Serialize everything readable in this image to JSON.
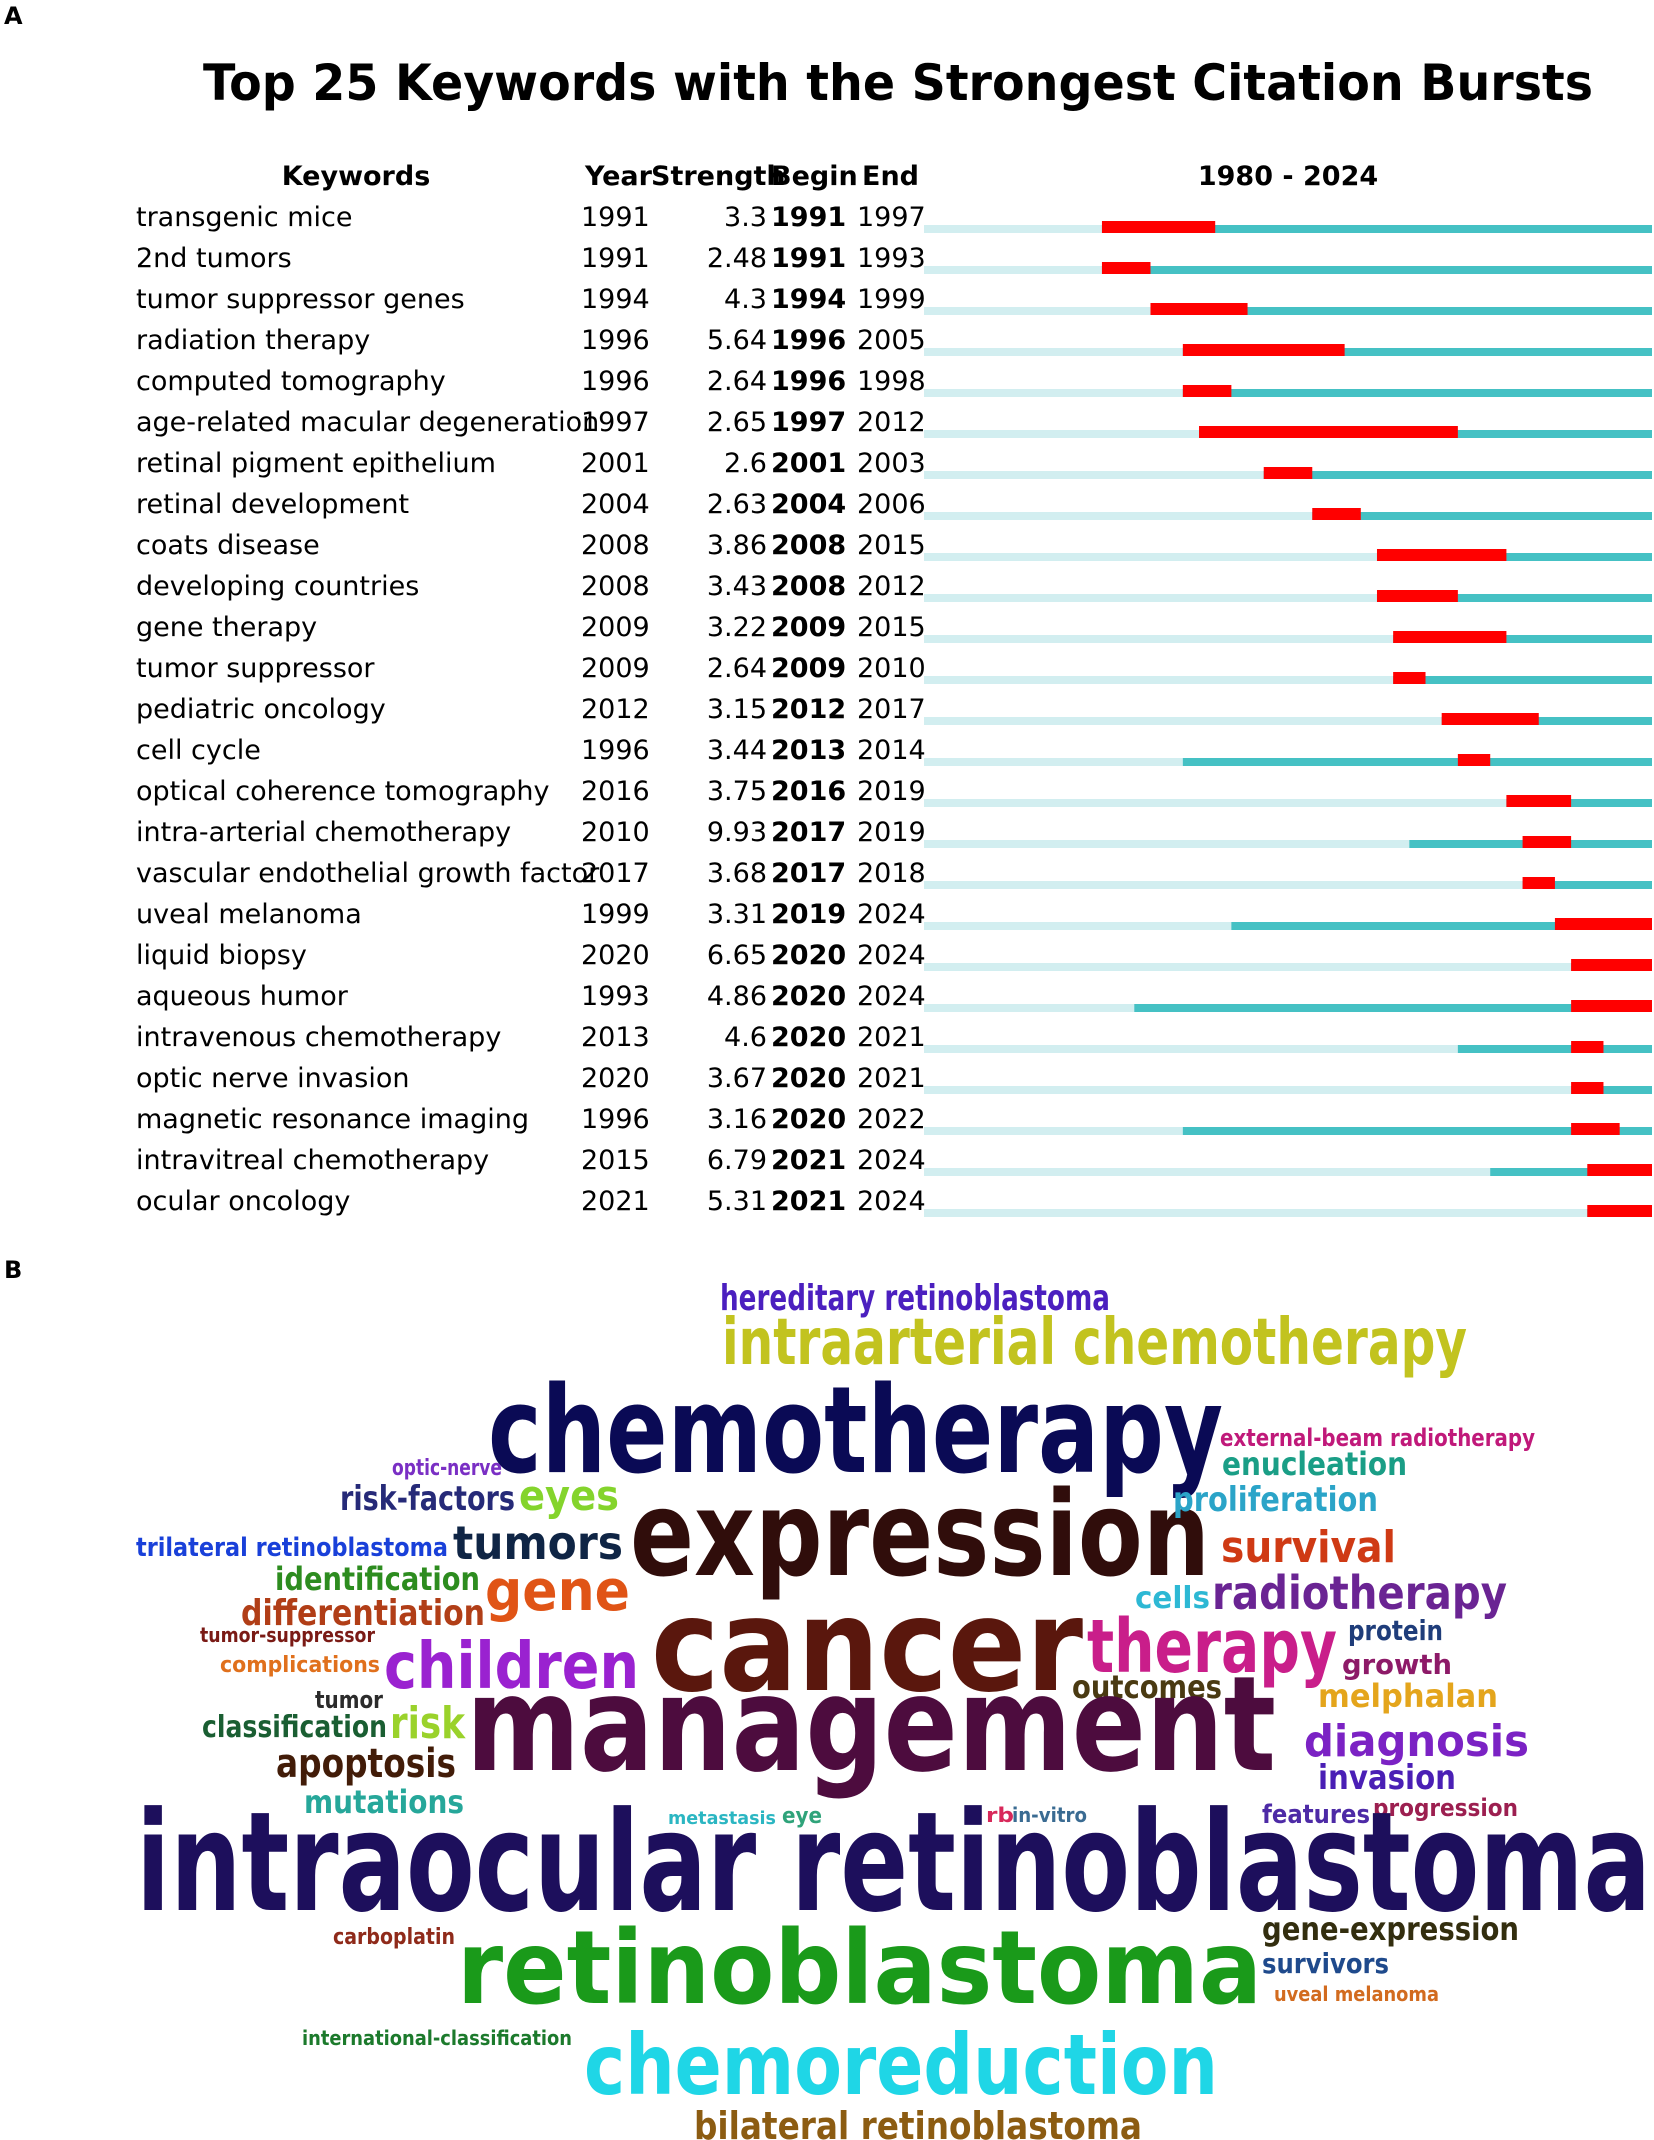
{
  "panel_a": {
    "letter": "A",
    "title": "Top 25 Keywords with the Strongest Citation Bursts",
    "headers": {
      "keywords": "Keywords",
      "year": "Year",
      "strength": "Strength",
      "begin": "Begin",
      "end": "End",
      "range": "1980 - 2024"
    }
  },
  "panel_b": {
    "letter": "B"
  },
  "colors": {
    "burst": "#ff0000",
    "active": "#45c1c4",
    "inactive": "#d2eef0",
    "text": "#000000"
  },
  "chart_data": [
    {
      "type": "table",
      "title": "Top 25 Keywords with the Strongest Citation Bursts",
      "timeline": {
        "start": 1980,
        "end": 2024
      },
      "columns": [
        "Keywords",
        "Year",
        "Strength",
        "Begin",
        "End"
      ],
      "rows": [
        {
          "keyword": "transgenic mice",
          "year": 1991,
          "strength": "3.3",
          "begin": 1991,
          "end": 1997
        },
        {
          "keyword": "2nd tumors",
          "year": 1991,
          "strength": "2.48",
          "begin": 1991,
          "end": 1993
        },
        {
          "keyword": "tumor suppressor genes",
          "year": 1994,
          "strength": "4.3",
          "begin": 1994,
          "end": 1999
        },
        {
          "keyword": "radiation therapy",
          "year": 1996,
          "strength": "5.64",
          "begin": 1996,
          "end": 2005
        },
        {
          "keyword": "computed tomography",
          "year": 1996,
          "strength": "2.64",
          "begin": 1996,
          "end": 1998
        },
        {
          "keyword": "age-related macular degeneration",
          "year": 1997,
          "strength": "2.65",
          "begin": 1997,
          "end": 2012
        },
        {
          "keyword": "retinal pigment epithelium",
          "year": 2001,
          "strength": "2.6",
          "begin": 2001,
          "end": 2003
        },
        {
          "keyword": "retinal development",
          "year": 2004,
          "strength": "2.63",
          "begin": 2004,
          "end": 2006
        },
        {
          "keyword": "coats disease",
          "year": 2008,
          "strength": "3.86",
          "begin": 2008,
          "end": 2015
        },
        {
          "keyword": "developing countries",
          "year": 2008,
          "strength": "3.43",
          "begin": 2008,
          "end": 2012
        },
        {
          "keyword": "gene therapy",
          "year": 2009,
          "strength": "3.22",
          "begin": 2009,
          "end": 2015
        },
        {
          "keyword": "tumor suppressor",
          "year": 2009,
          "strength": "2.64",
          "begin": 2009,
          "end": 2010
        },
        {
          "keyword": "pediatric oncology",
          "year": 2012,
          "strength": "3.15",
          "begin": 2012,
          "end": 2017
        },
        {
          "keyword": "cell cycle",
          "year": 1996,
          "strength": "3.44",
          "begin": 2013,
          "end": 2014
        },
        {
          "keyword": "optical coherence tomography",
          "year": 2016,
          "strength": "3.75",
          "begin": 2016,
          "end": 2019
        },
        {
          "keyword": "intra-arterial chemotherapy",
          "year": 2010,
          "strength": "9.93",
          "begin": 2017,
          "end": 2019
        },
        {
          "keyword": "vascular endothelial growth factor",
          "year": 2017,
          "strength": "3.68",
          "begin": 2017,
          "end": 2018
        },
        {
          "keyword": "uveal melanoma",
          "year": 1999,
          "strength": "3.31",
          "begin": 2019,
          "end": 2024
        },
        {
          "keyword": "liquid biopsy",
          "year": 2020,
          "strength": "6.65",
          "begin": 2020,
          "end": 2024
        },
        {
          "keyword": "aqueous humor",
          "year": 1993,
          "strength": "4.86",
          "begin": 2020,
          "end": 2024
        },
        {
          "keyword": "intravenous chemotherapy",
          "year": 2013,
          "strength": "4.6",
          "begin": 2020,
          "end": 2021
        },
        {
          "keyword": "optic nerve invasion",
          "year": 2020,
          "strength": "3.67",
          "begin": 2020,
          "end": 2021
        },
        {
          "keyword": "magnetic resonance imaging",
          "year": 1996,
          "strength": "3.16",
          "begin": 2020,
          "end": 2022
        },
        {
          "keyword": "intravitreal chemotherapy",
          "year": 2015,
          "strength": "6.79",
          "begin": 2021,
          "end": 2024
        },
        {
          "keyword": "ocular oncology",
          "year": 2021,
          "strength": "5.31",
          "begin": 2021,
          "end": 2024
        }
      ]
    },
    {
      "type": "wordcloud",
      "words": [
        {
          "text": "hereditary retinoblastoma",
          "color": "#4b1fbf"
        },
        {
          "text": "intraarterial chemotherapy",
          "color": "#c2c31f"
        },
        {
          "text": "chemotherapy",
          "color": "#0a0a55"
        },
        {
          "text": "optic-nerve",
          "color": "#7a2fc4"
        },
        {
          "text": "external-beam radiotherapy",
          "color": "#c0197a"
        },
        {
          "text": "enucleation",
          "color": "#1a9e86"
        },
        {
          "text": "risk-factors",
          "color": "#262a78"
        },
        {
          "text": "eyes",
          "color": "#84d42c"
        },
        {
          "text": "expression",
          "color": "#300d0b"
        },
        {
          "text": "proliferation",
          "color": "#2ba4c8"
        },
        {
          "text": "trilateral retinoblastoma",
          "color": "#1940d9"
        },
        {
          "text": "tumors",
          "color": "#0f2545"
        },
        {
          "text": "survival",
          "color": "#cf3a14"
        },
        {
          "text": "identification",
          "color": "#2d8c1f"
        },
        {
          "text": "gene",
          "color": "#e05416"
        },
        {
          "text": "cells",
          "color": "#2db8d4"
        },
        {
          "text": "radiotherapy",
          "color": "#6a2493"
        },
        {
          "text": "differentiation",
          "color": "#b13e17"
        },
        {
          "text": "cancer",
          "color": "#5a170d"
        },
        {
          "text": "tumor-suppressor",
          "color": "#7a1a15"
        },
        {
          "text": "therapy",
          "color": "#c91e8a"
        },
        {
          "text": "protein",
          "color": "#1f3d7a"
        },
        {
          "text": "complications",
          "color": "#e0701c"
        },
        {
          "text": "children",
          "color": "#9a22d0"
        },
        {
          "text": "growth",
          "color": "#8d1a68"
        },
        {
          "text": "outcomes",
          "color": "#4a3a12"
        },
        {
          "text": "tumor",
          "color": "#2b2b2b"
        },
        {
          "text": "melphalan",
          "color": "#e4a51c"
        },
        {
          "text": "classification",
          "color": "#1a5e32"
        },
        {
          "text": "risk",
          "color": "#9ad22b"
        },
        {
          "text": "management",
          "color": "#4d0c3e"
        },
        {
          "text": "diagnosis",
          "color": "#7b22c4"
        },
        {
          "text": "apoptosis",
          "color": "#421c08"
        },
        {
          "text": "invasion",
          "color": "#4a1fb5"
        },
        {
          "text": "mutations",
          "color": "#26a79a"
        },
        {
          "text": "metastasis",
          "color": "#2bb6c2"
        },
        {
          "text": "eye",
          "color": "#2fa37a"
        },
        {
          "text": "rb",
          "color": "#d8285a"
        },
        {
          "text": "in-vitro",
          "color": "#3a6b92"
        },
        {
          "text": "features",
          "color": "#4d2aa6"
        },
        {
          "text": "progression",
          "color": "#9c1f50"
        },
        {
          "text": "intraocular retinoblastoma",
          "color": "#1d0f5c"
        },
        {
          "text": "carboplatin",
          "color": "#8f2a1a"
        },
        {
          "text": "gene-expression",
          "color": "#332e0f"
        },
        {
          "text": "retinoblastoma",
          "color": "#1a9a1a"
        },
        {
          "text": "survivors",
          "color": "#1f4a8c"
        },
        {
          "text": "uveal melanoma",
          "color": "#d26b1f"
        },
        {
          "text": "international-classification",
          "color": "#1c7a2c"
        },
        {
          "text": "chemoreduction",
          "color": "#1fd6e6"
        },
        {
          "text": "bilateral retinoblastoma",
          "color": "#8c5c12"
        }
      ]
    }
  ]
}
